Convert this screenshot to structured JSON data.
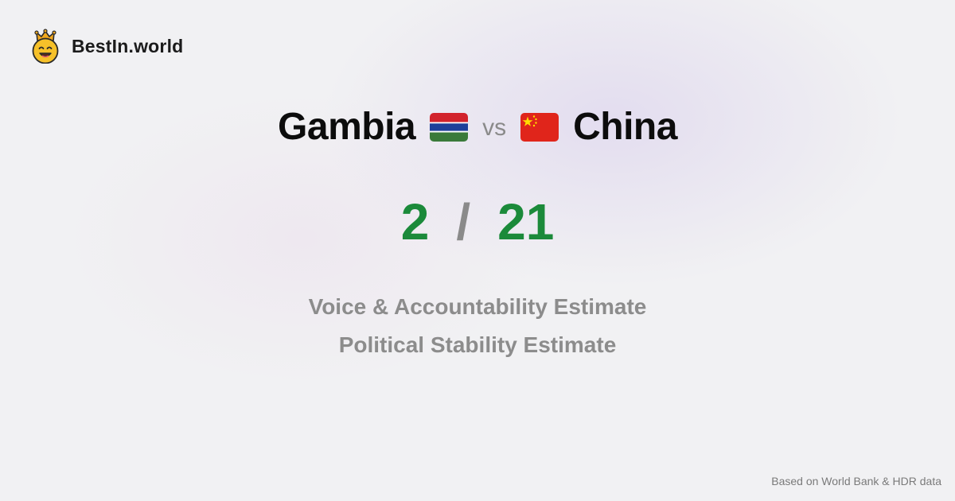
{
  "brand": {
    "name": "BestIn.world",
    "icon": "crowned-smiley-icon",
    "colors": {
      "face": "#f6c12a",
      "crown": "#f2a81d"
    }
  },
  "comparison": {
    "left_country": "Gambia",
    "left_flag_icon": "gambia-flag-icon",
    "vs_label": "vs",
    "right_country": "China",
    "right_flag_icon": "china-flag-icon"
  },
  "scores": {
    "left": "2",
    "separator": "/",
    "right": "21",
    "score_color": "#1b8a3a"
  },
  "metrics": [
    "Voice & Accountability Estimate",
    "Political Stability Estimate"
  ],
  "footer": {
    "source": "Based on World Bank & HDR data"
  }
}
